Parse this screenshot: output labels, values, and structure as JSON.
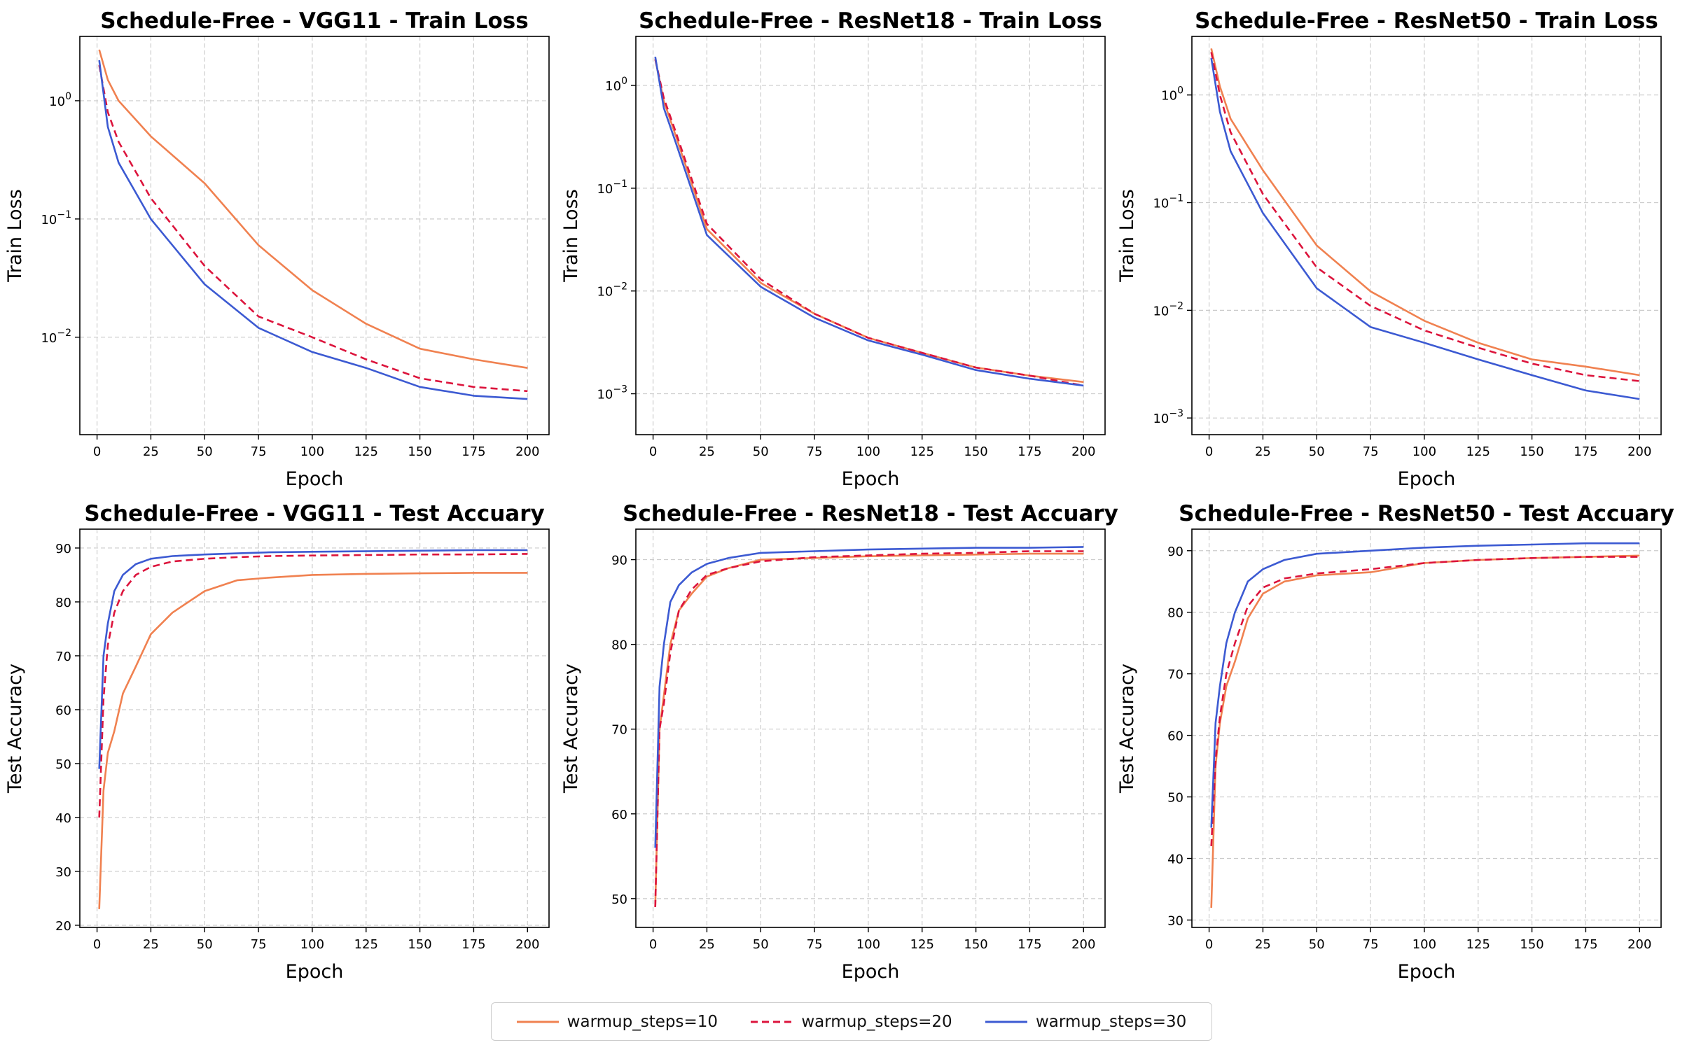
{
  "colors": {
    "s10": "#f08150",
    "s20": "#dc143c",
    "s30": "#3c5ad2",
    "grid": "#cccccc"
  },
  "legend": {
    "items": [
      {
        "label": "warmup_steps=10",
        "style": "solid",
        "color": "#f08150"
      },
      {
        "label": "warmup_steps=20",
        "style": "dashed",
        "color": "#dc143c"
      },
      {
        "label": "warmup_steps=30",
        "style": "solid",
        "color": "#3c5ad2"
      }
    ]
  },
  "chart_data": [
    {
      "type": "line",
      "title": "Schedule-Free - VGG11 - Train Loss",
      "xlabel": "Epoch",
      "ylabel": "Train Loss",
      "yscale": "log",
      "xlim": [
        -8,
        210
      ],
      "ylim": [
        0.0015,
        3.5
      ],
      "xticks": [
        0,
        25,
        50,
        75,
        100,
        125,
        150,
        175,
        200
      ],
      "yticks": [
        {
          "v": 1,
          "label": "10^0"
        },
        {
          "v": 0.1,
          "label": "10^-1"
        },
        {
          "v": 0.01,
          "label": "10^-2"
        }
      ],
      "grid": true,
      "series": [
        {
          "name": "warmup_steps=10",
          "x": [
            1,
            5,
            10,
            25,
            50,
            75,
            100,
            125,
            150,
            175,
            200
          ],
          "y": [
            2.7,
            1.5,
            1.0,
            0.5,
            0.2,
            0.06,
            0.025,
            0.013,
            0.008,
            0.0065,
            0.0055
          ]
        },
        {
          "name": "warmup_steps=20",
          "x": [
            1,
            5,
            10,
            25,
            50,
            75,
            100,
            125,
            150,
            175,
            200
          ],
          "y": [
            2.0,
            0.8,
            0.45,
            0.15,
            0.04,
            0.015,
            0.01,
            0.0065,
            0.0045,
            0.0038,
            0.0035
          ]
        },
        {
          "name": "warmup_steps=30",
          "x": [
            1,
            5,
            10,
            25,
            50,
            75,
            100,
            125,
            150,
            175,
            200
          ],
          "y": [
            2.2,
            0.6,
            0.3,
            0.1,
            0.028,
            0.012,
            0.0075,
            0.0055,
            0.0038,
            0.0032,
            0.003
          ]
        }
      ]
    },
    {
      "type": "line",
      "title": "Schedule-Free - ResNet18 - Train Loss",
      "xlabel": "Epoch",
      "ylabel": "Train Loss",
      "yscale": "log",
      "xlim": [
        -8,
        210
      ],
      "ylim": [
        0.0004,
        3.0
      ],
      "xticks": [
        0,
        25,
        50,
        75,
        100,
        125,
        150,
        175,
        200
      ],
      "yticks": [
        {
          "v": 1,
          "label": "10^0"
        },
        {
          "v": 0.1,
          "label": "10^-1"
        },
        {
          "v": 0.01,
          "label": "10^-2"
        },
        {
          "v": 0.001,
          "label": "10^-3"
        }
      ],
      "grid": true,
      "series": [
        {
          "name": "warmup_steps=10",
          "x": [
            1,
            5,
            10,
            25,
            50,
            75,
            100,
            125,
            150,
            175,
            200
          ],
          "y": [
            1.8,
            0.7,
            0.35,
            0.04,
            0.012,
            0.006,
            0.0035,
            0.0025,
            0.0018,
            0.0015,
            0.0013
          ]
        },
        {
          "name": "warmup_steps=20",
          "x": [
            1,
            5,
            10,
            25,
            50,
            75,
            100,
            125,
            150,
            175,
            200
          ],
          "y": [
            1.8,
            0.75,
            0.38,
            0.045,
            0.013,
            0.006,
            0.0035,
            0.0025,
            0.0018,
            0.0015,
            0.0012
          ]
        },
        {
          "name": "warmup_steps=30",
          "x": [
            1,
            5,
            10,
            25,
            50,
            75,
            100,
            125,
            150,
            175,
            200
          ],
          "y": [
            1.9,
            0.6,
            0.3,
            0.035,
            0.011,
            0.0055,
            0.0033,
            0.0024,
            0.0017,
            0.0014,
            0.0012
          ]
        }
      ]
    },
    {
      "type": "line",
      "title": "Schedule-Free - ResNet50 - Train Loss",
      "xlabel": "Epoch",
      "ylabel": "Train Loss",
      "yscale": "log",
      "xlim": [
        -8,
        210
      ],
      "ylim": [
        0.0007,
        3.5
      ],
      "xticks": [
        0,
        25,
        50,
        75,
        100,
        125,
        150,
        175,
        200
      ],
      "yticks": [
        {
          "v": 1,
          "label": "10^0"
        },
        {
          "v": 0.1,
          "label": "10^-1"
        },
        {
          "v": 0.01,
          "label": "10^-2"
        },
        {
          "v": 0.001,
          "label": "10^-3"
        }
      ],
      "grid": true,
      "series": [
        {
          "name": "warmup_steps=10",
          "x": [
            1,
            5,
            10,
            25,
            50,
            75,
            100,
            125,
            150,
            175,
            200
          ],
          "y": [
            2.7,
            1.2,
            0.6,
            0.2,
            0.04,
            0.015,
            0.008,
            0.005,
            0.0035,
            0.003,
            0.0025
          ]
        },
        {
          "name": "warmup_steps=20",
          "x": [
            1,
            5,
            10,
            25,
            50,
            75,
            100,
            125,
            150,
            175,
            200
          ],
          "y": [
            2.5,
            1.0,
            0.45,
            0.12,
            0.025,
            0.011,
            0.0065,
            0.0045,
            0.0032,
            0.0025,
            0.0022
          ]
        },
        {
          "name": "warmup_steps=30",
          "x": [
            1,
            5,
            10,
            25,
            50,
            75,
            100,
            125,
            150,
            175,
            200
          ],
          "y": [
            2.2,
            0.7,
            0.3,
            0.08,
            0.016,
            0.007,
            0.005,
            0.0035,
            0.0025,
            0.0018,
            0.0015
          ]
        }
      ]
    },
    {
      "type": "line",
      "title": "Schedule-Free - VGG11 - Test Accuary",
      "xlabel": "Epoch",
      "ylabel": "Test Accuracy",
      "yscale": "linear",
      "xlim": [
        -8,
        210
      ],
      "ylim": [
        19.6,
        93.5
      ],
      "xticks": [
        0,
        25,
        50,
        75,
        100,
        125,
        150,
        175,
        200
      ],
      "yticks": [
        {
          "v": 20,
          "label": "20"
        },
        {
          "v": 30,
          "label": "30"
        },
        {
          "v": 40,
          "label": "40"
        },
        {
          "v": 50,
          "label": "50"
        },
        {
          "v": 60,
          "label": "60"
        },
        {
          "v": 70,
          "label": "70"
        },
        {
          "v": 80,
          "label": "80"
        },
        {
          "v": 90,
          "label": "90"
        }
      ],
      "grid": true,
      "series": [
        {
          "name": "warmup_steps=10",
          "x": [
            1,
            3,
            5,
            8,
            12,
            18,
            25,
            35,
            50,
            65,
            80,
            100,
            125,
            150,
            175,
            200
          ],
          "y": [
            23,
            45,
            52,
            56,
            63,
            68,
            74,
            78,
            82,
            84,
            84.5,
            85,
            85.2,
            85.3,
            85.4,
            85.4
          ]
        },
        {
          "name": "warmup_steps=20",
          "x": [
            1,
            3,
            5,
            8,
            12,
            18,
            25,
            35,
            50,
            65,
            80,
            100,
            125,
            150,
            175,
            200
          ],
          "y": [
            40,
            62,
            72,
            78,
            82,
            85,
            86.5,
            87.5,
            88,
            88.3,
            88.5,
            88.6,
            88.7,
            88.8,
            88.8,
            88.9
          ]
        },
        {
          "name": "warmup_steps=30",
          "x": [
            1,
            3,
            5,
            8,
            12,
            18,
            25,
            35,
            50,
            65,
            80,
            100,
            125,
            150,
            175,
            200
          ],
          "y": [
            49,
            70,
            76,
            82,
            85,
            87,
            88,
            88.5,
            88.8,
            89,
            89.2,
            89.3,
            89.4,
            89.5,
            89.6,
            89.6
          ]
        }
      ]
    },
    {
      "type": "line",
      "title": "Schedule-Free - ResNet18 - Test Accuary",
      "xlabel": "Epoch",
      "ylabel": "Test Accuracy",
      "yscale": "linear",
      "xlim": [
        -8,
        210
      ],
      "ylim": [
        46.6,
        93.6
      ],
      "xticks": [
        0,
        25,
        50,
        75,
        100,
        125,
        150,
        175,
        200
      ],
      "yticks": [
        {
          "v": 50,
          "label": "50"
        },
        {
          "v": 60,
          "label": "60"
        },
        {
          "v": 70,
          "label": "70"
        },
        {
          "v": 80,
          "label": "80"
        },
        {
          "v": 90,
          "label": "90"
        }
      ],
      "grid": true,
      "series": [
        {
          "name": "warmup_steps=10",
          "x": [
            1,
            3,
            5,
            8,
            12,
            18,
            25,
            35,
            50,
            75,
            100,
            125,
            150,
            175,
            200
          ],
          "y": [
            49,
            70,
            74,
            80,
            84,
            86,
            88,
            89,
            90,
            90.2,
            90.4,
            90.5,
            90.6,
            90.7,
            90.7
          ]
        },
        {
          "name": "warmup_steps=20",
          "x": [
            1,
            3,
            5,
            8,
            12,
            18,
            25,
            35,
            50,
            75,
            100,
            125,
            150,
            175,
            200
          ],
          "y": [
            49,
            70,
            73,
            79,
            84,
            86.5,
            88.2,
            89,
            89.8,
            90.3,
            90.5,
            90.7,
            90.8,
            91,
            91
          ]
        },
        {
          "name": "warmup_steps=30",
          "x": [
            1,
            3,
            5,
            8,
            12,
            18,
            25,
            35,
            50,
            75,
            100,
            125,
            150,
            175,
            200
          ],
          "y": [
            56,
            75,
            80,
            85,
            87,
            88.5,
            89.5,
            90.2,
            90.8,
            91,
            91.2,
            91.3,
            91.4,
            91.4,
            91.5
          ]
        }
      ]
    },
    {
      "type": "line",
      "title": "Schedule-Free - ResNet50 - Test Accuary",
      "xlabel": "Epoch",
      "ylabel": "Test Accuracy",
      "yscale": "linear",
      "xlim": [
        -8,
        210
      ],
      "ylim": [
        28.8,
        93.5
      ],
      "xticks": [
        0,
        25,
        50,
        75,
        100,
        125,
        150,
        175,
        200
      ],
      "yticks": [
        {
          "v": 30,
          "label": "30"
        },
        {
          "v": 40,
          "label": "40"
        },
        {
          "v": 50,
          "label": "50"
        },
        {
          "v": 60,
          "label": "60"
        },
        {
          "v": 70,
          "label": "70"
        },
        {
          "v": 80,
          "label": "80"
        },
        {
          "v": 90,
          "label": "90"
        }
      ],
      "grid": true,
      "series": [
        {
          "name": "warmup_steps=10",
          "x": [
            1,
            3,
            5,
            8,
            12,
            18,
            25,
            35,
            50,
            75,
            100,
            125,
            150,
            175,
            200
          ],
          "y": [
            32,
            55,
            62,
            68,
            72,
            79,
            83,
            85,
            86,
            86.5,
            88,
            88.5,
            88.8,
            89,
            89.2
          ]
        },
        {
          "name": "warmup_steps=20",
          "x": [
            1,
            3,
            5,
            8,
            12,
            18,
            25,
            35,
            50,
            75,
            100,
            125,
            150,
            175,
            200
          ],
          "y": [
            42,
            56,
            63,
            70,
            75,
            81,
            84,
            85.5,
            86.3,
            87,
            88,
            88.5,
            88.8,
            89,
            89
          ]
        },
        {
          "name": "warmup_steps=30",
          "x": [
            1,
            3,
            5,
            8,
            12,
            18,
            25,
            35,
            50,
            75,
            100,
            125,
            150,
            175,
            200
          ],
          "y": [
            45,
            62,
            68,
            75,
            80,
            85,
            87,
            88.5,
            89.5,
            90,
            90.5,
            90.8,
            91,
            91.2,
            91.2
          ]
        }
      ]
    }
  ]
}
